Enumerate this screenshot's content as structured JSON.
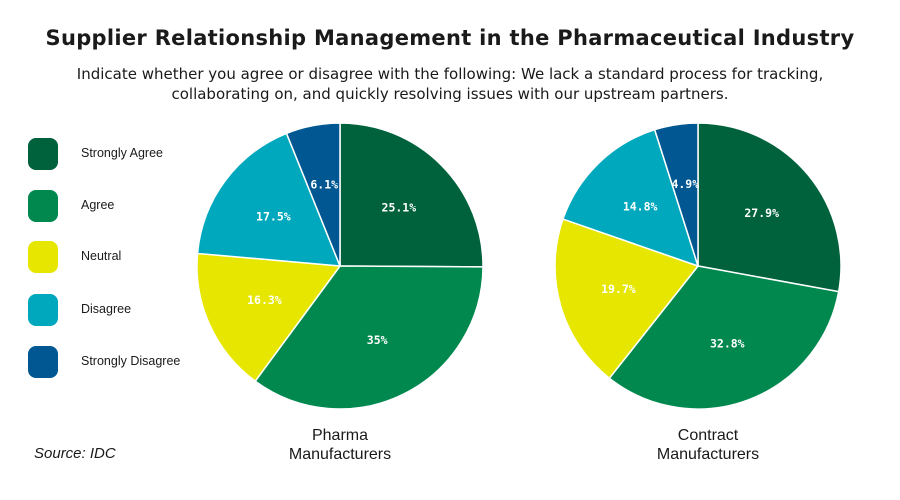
{
  "title": "Supplier Relationship Management in the Pharmaceutical Industry",
  "subtitle": "Indicate whether you agree or disagree with the following: We lack a standard process for tracking, collaborating on, and quickly resolving issues with our upstream partners.",
  "source": "Source: IDC",
  "legend": [
    {
      "label": "Strongly Agree",
      "color": "#00613d"
    },
    {
      "label": "Agree",
      "color": "#00884f"
    },
    {
      "label": "Neutral",
      "color": "#e6e600"
    },
    {
      "label": "Disagree",
      "color": "#00a8bd"
    },
    {
      "label": "Strongly Disagree",
      "color": "#005792"
    }
  ],
  "chart_data": [
    {
      "type": "pie",
      "title": "Pharma\nManufacturers",
      "categories": [
        "Strongly Agree",
        "Agree",
        "Neutral",
        "Disagree",
        "Strongly Disagree"
      ],
      "values": [
        25.1,
        35,
        16.3,
        17.5,
        6.1
      ],
      "labels": [
        "25.1%",
        "35%",
        "16.3%",
        "17.5%",
        "6.1%"
      ],
      "label_colors": [
        "#ffffff",
        "#ffffff",
        "#ffffff",
        "#ffffff",
        "#ffffff"
      ]
    },
    {
      "type": "pie",
      "title": "Contract\nManufacturers",
      "categories": [
        "Strongly Agree",
        "Agree",
        "Neutral",
        "Disagree",
        "Strongly Disagree"
      ],
      "values": [
        27.9,
        32.8,
        19.7,
        14.8,
        4.9
      ],
      "labels": [
        "27.9%",
        "32.8%",
        "19.7%",
        "14.8%",
        "4.9%"
      ],
      "label_colors": [
        "#ffffff",
        "#ffffff",
        "#ffffff",
        "#ffffff",
        "#ffffff"
      ]
    }
  ]
}
